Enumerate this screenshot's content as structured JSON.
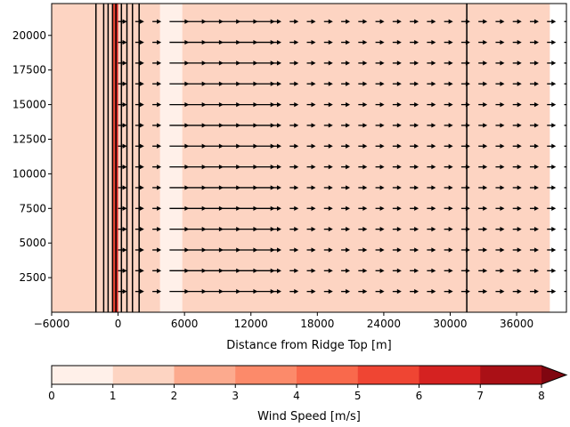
{
  "chart_data": {
    "type": "heatmap",
    "title": "",
    "xlabel": "Distance from Ridge Top [m]",
    "ylabel": "",
    "xlim": [
      -6000,
      40500
    ],
    "ylim": [
      0,
      22300
    ],
    "x_ticks": [
      -6000,
      0,
      6000,
      12000,
      18000,
      24000,
      30000,
      36000
    ],
    "x_tick_labels": [
      "−6000",
      "0",
      "6000",
      "12000",
      "18000",
      "24000",
      "30000",
      "36000"
    ],
    "y_ticks": [
      2500,
      5000,
      7500,
      10000,
      12500,
      15000,
      17500,
      20000
    ],
    "y_tick_labels": [
      "2500",
      "5000",
      "7500",
      "10000",
      "12500",
      "15000",
      "17500",
      "20000"
    ],
    "wind_speed_fill": [
      {
        "x_start": -6000,
        "x_end": -500,
        "speed_bin": [
          1,
          2
        ]
      },
      {
        "x_start": -500,
        "x_end": 0,
        "speed_bin": [
          5,
          7
        ]
      },
      {
        "x_start": 0,
        "x_end": 3800,
        "speed_bin": [
          1,
          2
        ]
      },
      {
        "x_start": 3800,
        "x_end": 5800,
        "speed_bin": [
          0,
          1
        ]
      },
      {
        "x_start": 5800,
        "x_end": 39000,
        "speed_bin": [
          1,
          2
        ]
      }
    ],
    "terrain_contour_x": [
      -2000,
      -1300,
      -900,
      -500,
      -200,
      300,
      800,
      1300,
      1900,
      31500
    ],
    "quiver": {
      "direction": "positive-x",
      "levels_y": [
        1500,
        3000,
        4500,
        6000,
        7500,
        9000,
        10500,
        12000,
        13500,
        15000,
        16500,
        18000,
        19500,
        21000
      ],
      "x_start": 0,
      "x_end": 40500,
      "spacing": 1550,
      "long_arrow_range": [
        4600,
        12500
      ]
    },
    "colorbar": {
      "label": "Wind Speed [m/s]",
      "levels": [
        0,
        1,
        2,
        3,
        4,
        5,
        6,
        7,
        8
      ],
      "tick_labels": [
        "0",
        "1",
        "2",
        "3",
        "4",
        "5",
        "6",
        "7",
        "8"
      ],
      "colors": [
        "#fff0e9",
        "#fdd4c2",
        "#fcaa8e",
        "#fc8a6a",
        "#f9694c",
        "#ef4533",
        "#d52221",
        "#aa1016",
        "#800610"
      ],
      "extend": "max"
    }
  }
}
